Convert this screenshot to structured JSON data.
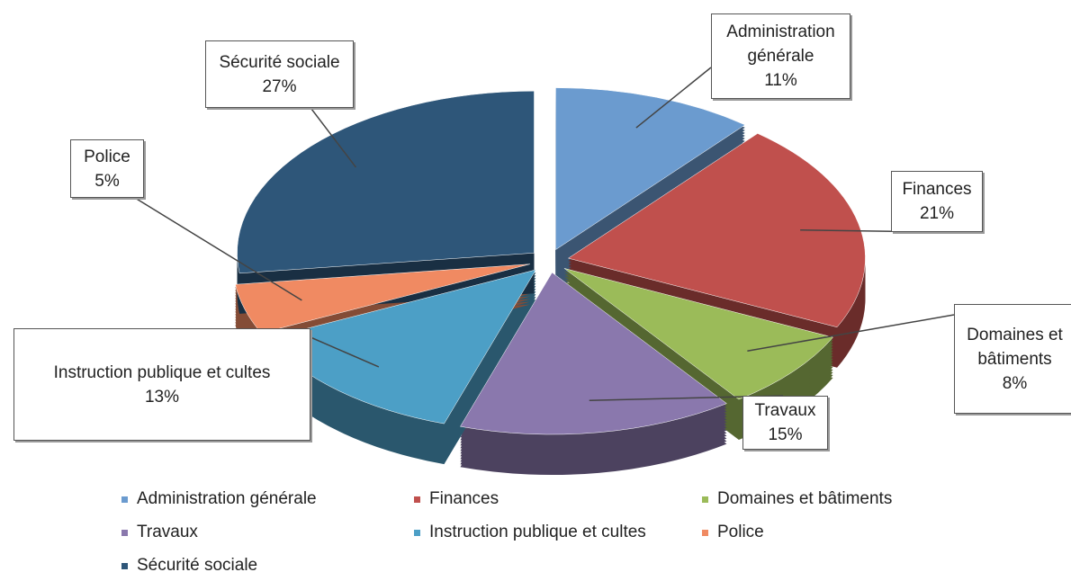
{
  "chart_data": {
    "type": "pie",
    "categories": [
      "Administration générale",
      "Finances",
      "Domaines et bâtiments",
      "Travaux",
      "Instruction publique et cultes",
      "Police",
      "Sécurité sociale"
    ],
    "values": [
      11,
      21,
      8,
      15,
      13,
      5,
      27
    ],
    "value_labels": [
      "11%",
      "21%",
      "8%",
      "15%",
      "13%",
      "5%",
      "27%"
    ],
    "colors": [
      "#6b9bcf",
      "#c0504d",
      "#9bbb59",
      "#8a78ad",
      "#4c9fc6",
      "#f08a62",
      "#2e5679"
    ],
    "legend": "bottom"
  }
}
